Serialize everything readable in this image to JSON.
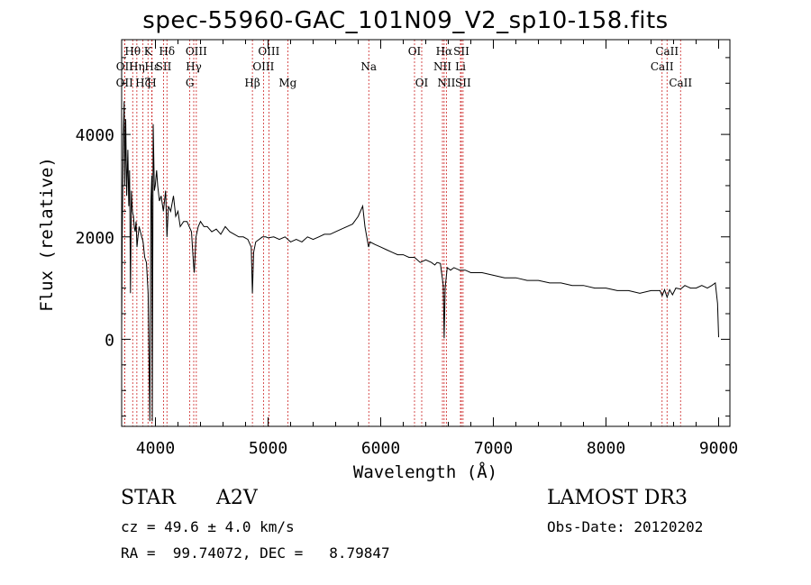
{
  "header": {
    "title": "spec-55960-GAC_101N09_V2_sp10-158.fits"
  },
  "footer": {
    "class_label": "STAR",
    "subclass": "A2V",
    "survey": "LAMOST DR3",
    "cz_text": "cz = 49.6 ± 4.0 km/s",
    "obs_date_text": "Obs-Date: 20120202",
    "coords_text": "RA =  99.74072, DEC =   8.79847"
  },
  "chart_data": {
    "type": "line",
    "title": "spec-55960-GAC_101N09_V2_sp10-158.fits",
    "xlabel": "Wavelength (Å)",
    "ylabel": "Flux (relative)",
    "xlim": [
      3700,
      9100
    ],
    "ylim": [
      -1700,
      5850
    ],
    "x_ticks": [
      4000,
      5000,
      6000,
      7000,
      8000,
      9000
    ],
    "y_ticks": [
      0,
      2000,
      4000
    ],
    "line_color": "#000000",
    "marker_color": "#cc2222",
    "series": [
      {
        "name": "flux",
        "x": [
          3700,
          3705,
          3715,
          3722,
          3728,
          3736,
          3745,
          3755,
          3763,
          3770,
          3778,
          3786,
          3795,
          3805,
          3812,
          3820,
          3828,
          3836,
          3845,
          3855,
          3866,
          3878,
          3890,
          3905,
          3920,
          3935,
          3950,
          3960,
          3968,
          3972,
          3980,
          3990,
          3998,
          4010,
          4020,
          4035,
          4050,
          4070,
          4090,
          4102,
          4115,
          4135,
          4160,
          4180,
          4200,
          4220,
          4250,
          4280,
          4300,
          4320,
          4340,
          4345,
          4360,
          4380,
          4400,
          4430,
          4460,
          4500,
          4540,
          4580,
          4620,
          4660,
          4700,
          4740,
          4780,
          4820,
          4850,
          4861,
          4872,
          4890,
          4920,
          4950,
          4980,
          5000,
          5050,
          5100,
          5150,
          5200,
          5250,
          5300,
          5350,
          5400,
          5450,
          5500,
          5550,
          5600,
          5650,
          5700,
          5750,
          5800,
          5840,
          5860,
          5880,
          5892,
          5905,
          5950,
          6000,
          6050,
          6100,
          6150,
          6200,
          6250,
          6300,
          6350,
          6400,
          6450,
          6480,
          6500,
          6530,
          6555,
          6563,
          6572,
          6590,
          6620,
          6650,
          6700,
          6750,
          6800,
          6900,
          7000,
          7100,
          7200,
          7300,
          7400,
          7500,
          7600,
          7700,
          7800,
          7900,
          8000,
          8100,
          8200,
          8300,
          8400,
          8480,
          8498,
          8520,
          8542,
          8565,
          8590,
          8620,
          8662,
          8700,
          8750,
          8800,
          8850,
          8900,
          8940,
          8970,
          8990,
          9000
        ],
        "y": [
          200,
          2000,
          4000,
          4650,
          3000,
          4300,
          2800,
          3700,
          2600,
          3300,
          900,
          2900,
          2500,
          2400,
          2200,
          2100,
          2300,
          1800,
          2000,
          2200,
          2100,
          2000,
          1900,
          1600,
          1500,
          900,
          -1600,
          2700,
          3200,
          -1600,
          4200,
          2900,
          3000,
          3300,
          3000,
          2700,
          2800,
          2500,
          2900,
          2000,
          2600,
          2500,
          2800,
          2400,
          2500,
          2200,
          2300,
          2300,
          2200,
          2100,
          1400,
          1300,
          2000,
          2200,
          2300,
          2200,
          2200,
          2100,
          2150,
          2050,
          2200,
          2100,
          2050,
          2000,
          2000,
          1950,
          1800,
          900,
          1700,
          1900,
          1950,
          2000,
          2000,
          1980,
          2000,
          1950,
          2000,
          1900,
          1950,
          1900,
          2000,
          1950,
          2000,
          2050,
          2050,
          2100,
          2150,
          2200,
          2250,
          2400,
          2600,
          2200,
          1950,
          1800,
          1900,
          1850,
          1800,
          1750,
          1700,
          1650,
          1650,
          1600,
          1600,
          1500,
          1550,
          1500,
          1450,
          1500,
          1480,
          1050,
          20,
          1000,
          1400,
          1350,
          1400,
          1350,
          1350,
          1300,
          1300,
          1250,
          1200,
          1200,
          1150,
          1150,
          1100,
          1100,
          1050,
          1050,
          1000,
          1000,
          950,
          950,
          900,
          950,
          950,
          850,
          970,
          820,
          970,
          870,
          1000,
          980,
          1050,
          1000,
          1000,
          1050,
          1000,
          1050,
          1100,
          700,
          40
        ]
      }
    ],
    "line_markers": [
      {
        "name": "OII",
        "wl": 3727,
        "row": 2
      },
      {
        "name": "Hθ",
        "wl": 3798,
        "row": 1
      },
      {
        "name": "OII",
        "wl": 3726,
        "row": 3
      },
      {
        "name": "Hη",
        "wl": 3835,
        "row": 2
      },
      {
        "name": "Hζ",
        "wl": 3889,
        "row": 3
      },
      {
        "name": "K",
        "wl": 3934,
        "row": 1
      },
      {
        "name": "H",
        "wl": 3968,
        "row": 3
      },
      {
        "name": "Hε",
        "wl": 3970,
        "row": 2
      },
      {
        "name": "SII",
        "wl": 4072,
        "row": 2
      },
      {
        "name": "Hδ",
        "wl": 4102,
        "row": 1
      },
      {
        "name": "G",
        "wl": 4305,
        "row": 3
      },
      {
        "name": "Hγ",
        "wl": 4340,
        "row": 2
      },
      {
        "name": "OIII",
        "wl": 4363,
        "row": 1
      },
      {
        "name": "Hβ",
        "wl": 4861,
        "row": 3
      },
      {
        "name": "OIII",
        "wl": 4959,
        "row": 2
      },
      {
        "name": "OIII",
        "wl": 5007,
        "row": 1
      },
      {
        "name": "Mg",
        "wl": 5175,
        "row": 3
      },
      {
        "name": "Na",
        "wl": 5894,
        "row": 2
      },
      {
        "name": "OI",
        "wl": 6300,
        "row": 1
      },
      {
        "name": "OI",
        "wl": 6364,
        "row": 3
      },
      {
        "name": "NII",
        "wl": 6548,
        "row": 2
      },
      {
        "name": "Hα",
        "wl": 6563,
        "row": 1
      },
      {
        "name": "NII",
        "wl": 6583,
        "row": 3
      },
      {
        "name": "Li",
        "wl": 6708,
        "row": 2
      },
      {
        "name": "SII",
        "wl": 6716,
        "row": 1
      },
      {
        "name": "SII",
        "wl": 6731,
        "row": 3
      },
      {
        "name": "CaII",
        "wl": 8498,
        "row": 2
      },
      {
        "name": "CaII",
        "wl": 8542,
        "row": 1
      },
      {
        "name": "CaII",
        "wl": 8662,
        "row": 3
      }
    ]
  }
}
